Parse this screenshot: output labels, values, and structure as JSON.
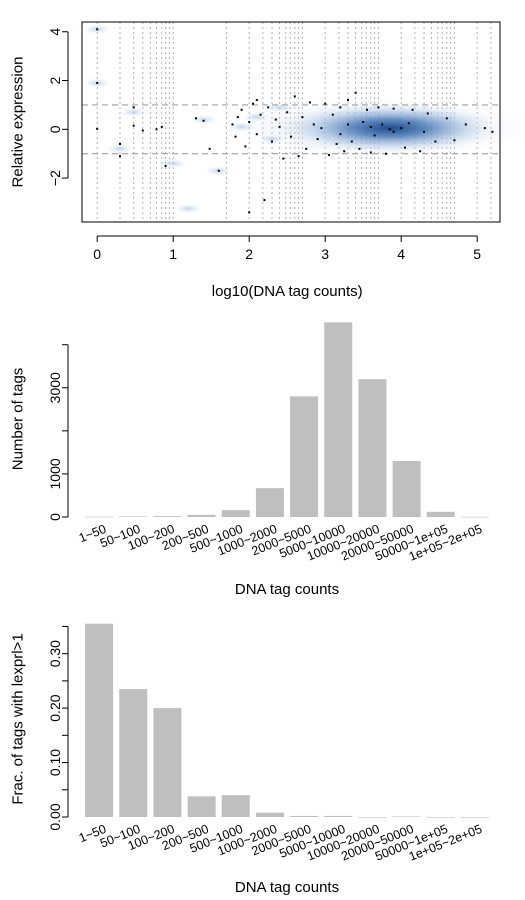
{
  "chart_data": [
    {
      "type": "scatter",
      "title": "",
      "xlabel": "log10(DNA tag counts)",
      "ylabel": "Relative expression",
      "xlim": [
        -0.2,
        5.3
      ],
      "ylim": [
        -3.8,
        4.4
      ],
      "xticks": [
        0,
        1,
        2,
        3,
        4,
        5
      ],
      "yticks": [
        -2,
        0,
        2,
        4
      ],
      "yticklabels": [
        "−2",
        "0",
        "2",
        "4"
      ],
      "hlines": [
        1,
        -1
      ],
      "vlines": [
        0,
        0.3,
        0.48,
        0.6,
        0.7,
        0.78,
        0.85,
        0.9,
        0.95,
        1.0,
        1.7,
        2.0,
        2.18,
        2.3,
        2.4,
        2.48,
        2.54,
        2.6,
        2.65,
        2.7,
        3.0,
        3.18,
        3.3,
        3.4,
        3.48,
        3.54,
        3.6,
        3.65,
        3.7,
        4.0,
        4.18,
        4.3,
        4.4,
        4.48,
        4.54,
        4.6,
        4.65,
        4.7,
        5.0,
        5.18
      ],
      "density": {
        "center": [
          3.85,
          0.05
        ],
        "sx": 0.55,
        "sy": 0.22,
        "color": "#2b5697"
      },
      "points": [
        [
          0,
          4.1
        ],
        [
          0,
          1.9
        ],
        [
          0,
          0.02
        ],
        [
          0.3,
          -0.6
        ],
        [
          0.3,
          -1.1
        ],
        [
          0.48,
          0.9
        ],
        [
          0.48,
          0.15
        ],
        [
          0.6,
          -0.05
        ],
        [
          0.78,
          0.0
        ],
        [
          0.85,
          0.1
        ],
        [
          0.9,
          -1.5
        ],
        [
          1.3,
          0.45
        ],
        [
          1.4,
          0.35
        ],
        [
          1.48,
          -0.8
        ],
        [
          1.6,
          -1.7
        ],
        [
          1.78,
          0.2
        ],
        [
          1.82,
          -0.3
        ],
        [
          1.85,
          0.5
        ],
        [
          1.9,
          0.8
        ],
        [
          1.95,
          -0.7
        ],
        [
          2.0,
          -3.4
        ],
        [
          2.0,
          0.3
        ],
        [
          2.05,
          1.05
        ],
        [
          2.1,
          1.2
        ],
        [
          2.1,
          -0.2
        ],
        [
          2.15,
          0.6
        ],
        [
          2.2,
          -2.9
        ],
        [
          2.25,
          0.9
        ],
        [
          2.3,
          -0.5
        ],
        [
          2.35,
          0.4
        ],
        [
          2.4,
          0.1
        ],
        [
          2.45,
          -1.2
        ],
        [
          2.5,
          0.7
        ],
        [
          2.55,
          -0.3
        ],
        [
          2.6,
          1.35
        ],
        [
          2.65,
          -1.1
        ],
        [
          2.7,
          0.5
        ],
        [
          2.75,
          -0.8
        ],
        [
          2.8,
          1.1
        ],
        [
          2.85,
          0.2
        ],
        [
          2.9,
          -0.4
        ],
        [
          3.0,
          1.05
        ],
        [
          3.05,
          -1.05
        ],
        [
          3.1,
          0.6
        ],
        [
          3.15,
          -0.6
        ],
        [
          3.2,
          0.9
        ],
        [
          3.25,
          -0.9
        ],
        [
          3.3,
          1.2
        ],
        [
          3.35,
          -0.5
        ],
        [
          3.4,
          1.5
        ],
        [
          3.45,
          -0.8
        ],
        [
          3.55,
          0.8
        ],
        [
          3.6,
          -0.95
        ],
        [
          3.7,
          0.9
        ],
        [
          3.8,
          -1.0
        ],
        [
          3.9,
          0.85
        ],
        [
          4.05,
          -0.75
        ],
        [
          4.15,
          0.8
        ],
        [
          4.25,
          -0.9
        ],
        [
          4.35,
          0.65
        ],
        [
          4.45,
          -0.5
        ],
        [
          4.6,
          0.45
        ],
        [
          4.7,
          -0.45
        ],
        [
          4.85,
          0.2
        ],
        [
          5.1,
          0.05
        ],
        [
          5.2,
          -0.1
        ],
        [
          3.6,
          0.1
        ],
        [
          3.75,
          0.2
        ],
        [
          3.9,
          -0.1
        ],
        [
          4.0,
          0.05
        ],
        [
          3.5,
          0.3
        ],
        [
          3.65,
          -0.25
        ],
        [
          4.1,
          0.25
        ],
        [
          4.3,
          -0.1
        ],
        [
          3.85,
          0.0
        ],
        [
          3.3,
          0.2
        ],
        [
          3.2,
          -0.2
        ],
        [
          2.95,
          0.05
        ]
      ]
    },
    {
      "type": "bar",
      "title": "",
      "xlabel": "DNA tag counts",
      "ylabel": "Number of tags",
      "ylim": [
        0,
        4550
      ],
      "yticks": [
        0,
        1000,
        3000
      ],
      "categories": [
        "1~50",
        "50~100",
        "100~200",
        "200~500",
        "500~1000",
        "1000~2000",
        "2000~5000",
        "5000~10000",
        "10000~20000",
        "20000~50000",
        "50000~1e+05",
        "1e+05~2e+05"
      ],
      "values": [
        8,
        12,
        20,
        50,
        160,
        670,
        2800,
        4520,
        3200,
        1300,
        120,
        5
      ]
    },
    {
      "type": "bar",
      "title": "",
      "xlabel": "DNA tag counts",
      "ylabel": "Frac. of tags with lexprl>1",
      "ylim": [
        0,
        0.36
      ],
      "yticks": [
        0.0,
        0.1,
        0.2,
        0.3
      ],
      "yticklabels": [
        "0.00",
        "0.10",
        "0.20",
        "0.30"
      ],
      "categories": [
        "1~50",
        "50~100",
        "100~200",
        "200~500",
        "500~1000",
        "1000~2000",
        "2000~5000",
        "5000~10000",
        "10000~20000",
        "20000~50000",
        "50000~1e+05",
        "1e+05~2e+05"
      ],
      "values": [
        0.355,
        0.235,
        0.2,
        0.038,
        0.04,
        0.008,
        0.002,
        0.002,
        0.0,
        0.001,
        0.0,
        0.0
      ]
    }
  ]
}
